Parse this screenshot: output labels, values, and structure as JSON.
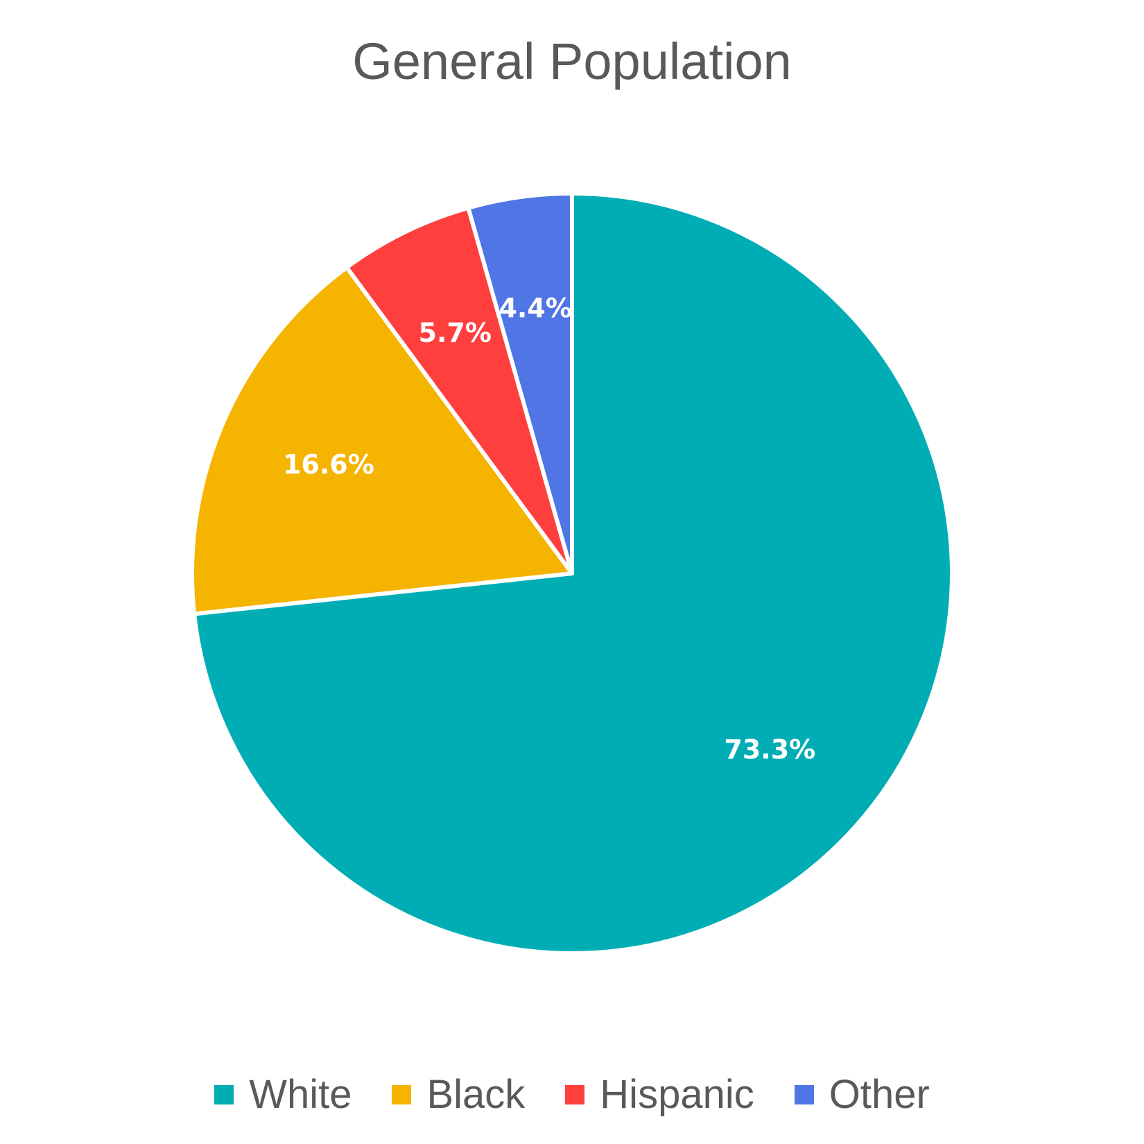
{
  "chart_data": {
    "type": "pie",
    "title": "General Population",
    "categories": [
      "White",
      "Black",
      "Hispanic",
      "Other"
    ],
    "values": [
      73.3,
      16.6,
      5.7,
      4.4
    ],
    "labels": [
      "73.3%",
      "16.6%",
      "5.7%",
      "4.4%"
    ],
    "colors": [
      "#00ADB5",
      "#F5B400",
      "#FF3E3E",
      "#5075E4"
    ],
    "start_angle_deg": 0,
    "direction": "clockwise",
    "legend_position": "bottom"
  }
}
